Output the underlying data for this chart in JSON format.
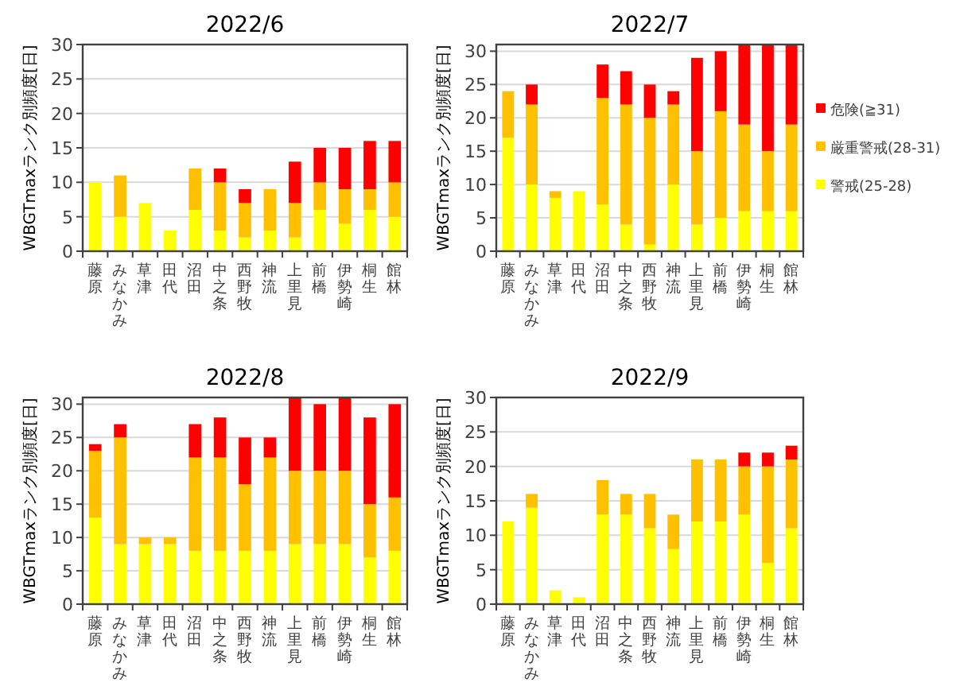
{
  "chart_data": [
    {
      "type": "bar",
      "stacked": true,
      "title": "2022/6",
      "ylabel": "WBGTmaxランク別頻度[日]",
      "categories": [
        "藤原",
        "みなかみ",
        "草津",
        "田代",
        "沼田",
        "中之条",
        "西野牧",
        "神流",
        "上里見",
        "前橋",
        "伊勢崎",
        "桐生",
        "館林"
      ],
      "ylim": [
        0,
        30
      ],
      "yticks": [
        0,
        5,
        10,
        15,
        20,
        25,
        30
      ],
      "grid": "y",
      "legend": false,
      "series": [
        {
          "color": "#ffff00",
          "values": [
            10,
            5,
            7,
            3,
            6,
            3,
            2,
            3,
            2,
            6,
            4,
            6,
            5
          ]
        },
        {
          "color": "#ffc000",
          "values": [
            0,
            6,
            0,
            0,
            6,
            7,
            5,
            6,
            5,
            4,
            5,
            3,
            5
          ]
        },
        {
          "color": "#ff0000",
          "values": [
            0,
            0,
            0,
            0,
            0,
            2,
            2,
            0,
            6,
            5,
            6,
            7,
            6
          ]
        }
      ]
    },
    {
      "type": "bar",
      "stacked": true,
      "title": "2022/7",
      "ylabel": "WBGTmaxランク別頻度[日]",
      "categories": [
        "藤原",
        "みなかみ",
        "草津",
        "田代",
        "沼田",
        "中之条",
        "西野牧",
        "神流",
        "上里見",
        "前橋",
        "伊勢崎",
        "桐生",
        "館林"
      ],
      "ylim": [
        0,
        31
      ],
      "yticks": [
        0,
        5,
        10,
        15,
        20,
        25,
        30
      ],
      "grid": "y",
      "legend": "right",
      "series": [
        {
          "name": "警戒(25-28)",
          "color": "#ffff00",
          "values": [
            17,
            10,
            8,
            9,
            7,
            4,
            1,
            10,
            4,
            5,
            6,
            6,
            6
          ]
        },
        {
          "name": "厳重警戒(28-31)",
          "color": "#ffc000",
          "values": [
            7,
            12,
            1,
            0,
            16,
            18,
            19,
            12,
            11,
            16,
            13,
            9,
            13
          ]
        },
        {
          "name": "危険(≧31)",
          "color": "#ff0000",
          "values": [
            0,
            3,
            0,
            0,
            5,
            5,
            5,
            2,
            14,
            9,
            12,
            16,
            12
          ]
        }
      ]
    },
    {
      "type": "bar",
      "stacked": true,
      "title": "2022/8",
      "ylabel": "WBGTmaxランク別頻度[日]",
      "categories": [
        "藤原",
        "みなかみ",
        "草津",
        "田代",
        "沼田",
        "中之条",
        "西野牧",
        "神流",
        "上里見",
        "前橋",
        "伊勢崎",
        "桐生",
        "館林"
      ],
      "ylim": [
        0,
        31
      ],
      "yticks": [
        0,
        5,
        10,
        15,
        20,
        25,
        30
      ],
      "grid": "y",
      "legend": false,
      "series": [
        {
          "color": "#ffff00",
          "values": [
            13,
            9,
            9,
            9,
            8,
            8,
            8,
            8,
            9,
            9,
            9,
            7,
            8
          ]
        },
        {
          "color": "#ffc000",
          "values": [
            10,
            16,
            1,
            1,
            14,
            14,
            10,
            14,
            11,
            11,
            11,
            8,
            8
          ]
        },
        {
          "color": "#ff0000",
          "values": [
            1,
            2,
            0,
            0,
            5,
            6,
            7,
            3,
            11,
            10,
            11,
            13,
            14
          ]
        }
      ]
    },
    {
      "type": "bar",
      "stacked": true,
      "title": "2022/9",
      "ylabel": "WBGTmaxランク別頻度[日]",
      "categories": [
        "藤原",
        "みなかみ",
        "草津",
        "田代",
        "沼田",
        "中之条",
        "西野牧",
        "神流",
        "上里見",
        "前橋",
        "伊勢崎",
        "桐生",
        "館林"
      ],
      "ylim": [
        0,
        30
      ],
      "yticks": [
        0,
        5,
        10,
        15,
        20,
        25,
        30
      ],
      "grid": "y",
      "legend": false,
      "series": [
        {
          "color": "#ffff00",
          "values": [
            12,
            14,
            2,
            1,
            13,
            13,
            11,
            8,
            12,
            12,
            13,
            6,
            11
          ]
        },
        {
          "color": "#ffc000",
          "values": [
            0,
            2,
            0,
            0,
            5,
            3,
            5,
            5,
            9,
            9,
            7,
            14,
            10
          ]
        },
        {
          "color": "#ff0000",
          "values": [
            0,
            0,
            0,
            0,
            0,
            0,
            0,
            0,
            0,
            0,
            2,
            2,
            2
          ]
        }
      ]
    }
  ]
}
